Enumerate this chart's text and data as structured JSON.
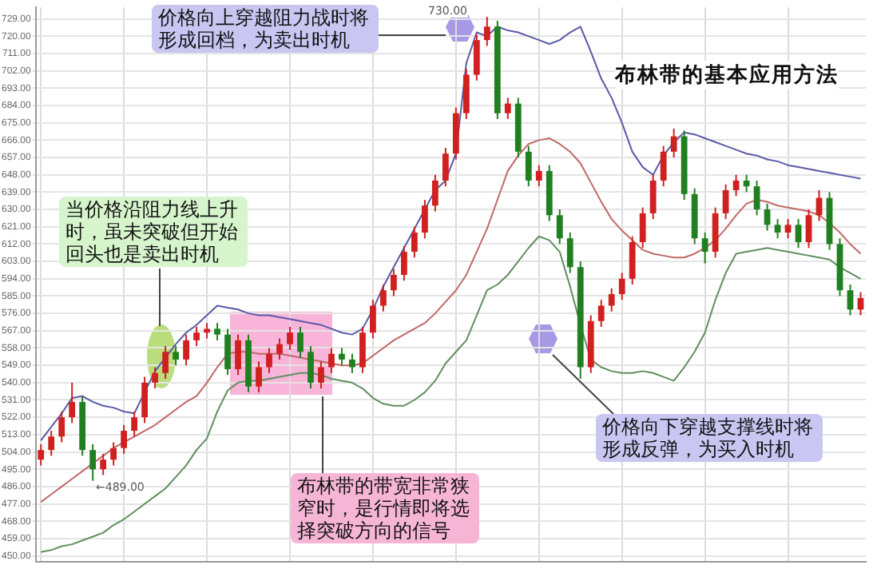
{
  "chart_data": {
    "type": "candlestick",
    "title": "布林带的基本应用方法",
    "categories": [
      null,
      null,
      null,
      null,
      null,
      null,
      null,
      null,
      null,
      null,
      null,
      null,
      null,
      null,
      null,
      null,
      null,
      null,
      null,
      null,
      null,
      null,
      null,
      null,
      null,
      null,
      null,
      null,
      null,
      null,
      null,
      null,
      null,
      null,
      null,
      null,
      null,
      null,
      null,
      null,
      null,
      null,
      null,
      null,
      null,
      null,
      null,
      null,
      null,
      null,
      null,
      null,
      null,
      null,
      null,
      null,
      null,
      null,
      null,
      null,
      null,
      null,
      null,
      null,
      null,
      null,
      null,
      null,
      null,
      null,
      null,
      null,
      null,
      null,
      null,
      null,
      null,
      null,
      null,
      null
    ],
    "ohlc": [
      [
        500,
        508,
        497,
        505
      ],
      [
        505,
        515,
        502,
        512
      ],
      [
        512,
        525,
        509,
        522
      ],
      [
        522,
        540,
        519,
        530
      ],
      [
        530,
        533,
        502,
        505
      ],
      [
        505,
        508,
        489,
        495
      ],
      [
        495,
        503,
        492,
        500
      ],
      [
        500,
        509,
        497,
        506
      ],
      [
        506,
        518,
        503,
        515
      ],
      [
        515,
        525,
        512,
        522
      ],
      [
        522,
        543,
        519,
        540
      ],
      [
        540,
        548,
        537,
        545
      ],
      [
        545,
        559,
        542,
        556
      ],
      [
        556,
        559,
        549,
        552
      ],
      [
        552,
        565,
        549,
        562
      ],
      [
        562,
        569,
        559,
        566
      ],
      [
        566,
        571,
        563,
        568
      ],
      [
        568,
        571,
        562,
        565
      ],
      [
        565,
        568,
        544,
        547
      ],
      [
        547,
        565,
        544,
        562
      ],
      [
        562,
        565,
        535,
        538
      ],
      [
        538,
        551,
        535,
        548
      ],
      [
        548,
        558,
        545,
        555
      ],
      [
        555,
        563,
        552,
        560
      ],
      [
        560,
        569,
        557,
        566
      ],
      [
        566,
        569,
        553,
        556
      ],
      [
        556,
        559,
        537,
        540
      ],
      [
        540,
        551,
        537,
        548
      ],
      [
        548,
        558,
        545,
        555
      ],
      [
        555,
        558,
        549,
        552
      ],
      [
        552,
        555,
        545,
        548
      ],
      [
        548,
        569,
        545,
        566
      ],
      [
        566,
        583,
        563,
        580
      ],
      [
        580,
        591,
        577,
        588
      ],
      [
        588,
        599,
        585,
        596
      ],
      [
        596,
        611,
        593,
        608
      ],
      [
        608,
        621,
        605,
        618
      ],
      [
        618,
        635,
        615,
        632
      ],
      [
        632,
        648,
        629,
        645
      ],
      [
        645,
        662,
        642,
        659
      ],
      [
        659,
        683,
        656,
        680
      ],
      [
        680,
        703,
        677,
        700
      ],
      [
        700,
        721,
        697,
        718
      ],
      [
        718,
        730,
        715,
        725
      ],
      [
        725,
        728,
        677,
        680
      ],
      [
        680,
        688,
        677,
        685
      ],
      [
        685,
        688,
        657,
        660
      ],
      [
        660,
        663,
        642,
        645
      ],
      [
        645,
        653,
        642,
        650
      ],
      [
        650,
        653,
        624,
        627
      ],
      [
        627,
        630,
        612,
        615
      ],
      [
        615,
        618,
        597,
        600
      ],
      [
        600,
        603,
        542,
        548
      ],
      [
        548,
        575,
        545,
        572
      ],
      [
        572,
        583,
        569,
        580
      ],
      [
        580,
        589,
        577,
        586
      ],
      [
        586,
        597,
        583,
        594
      ],
      [
        594,
        616,
        591,
        613
      ],
      [
        613,
        631,
        610,
        628
      ],
      [
        628,
        648,
        625,
        645
      ],
      [
        645,
        663,
        642,
        660
      ],
      [
        660,
        672,
        657,
        668
      ],
      [
        668,
        671,
        635,
        638
      ],
      [
        638,
        641,
        612,
        615
      ],
      [
        615,
        618,
        602,
        608
      ],
      [
        608,
        631,
        605,
        628
      ],
      [
        628,
        643,
        625,
        640
      ],
      [
        640,
        648,
        637,
        645
      ],
      [
        645,
        648,
        639,
        642
      ],
      [
        642,
        645,
        627,
        630
      ],
      [
        630,
        633,
        619,
        622
      ],
      [
        622,
        625,
        615,
        618
      ],
      [
        618,
        625,
        615,
        622
      ],
      [
        622,
        625,
        610,
        613
      ],
      [
        613,
        630,
        610,
        627
      ],
      [
        627,
        640,
        624,
        636
      ],
      [
        636,
        639,
        609,
        612
      ],
      [
        612,
        615,
        585,
        588
      ],
      [
        588,
        591,
        575,
        578
      ],
      [
        578,
        587,
        575,
        584
      ]
    ],
    "colors": [
      "#d02020",
      "#d02020",
      "#d02020",
      "#d02020",
      "#208020",
      "#208020",
      "#d02020",
      "#d02020",
      "#d02020",
      "#d02020",
      "#d02020",
      "#d02020",
      "#d02020",
      "#208020",
      "#d02020",
      "#d02020",
      "#d02020",
      "#208020",
      "#208020",
      "#d02020",
      "#208020",
      "#d02020",
      "#d02020",
      "#d02020",
      "#d02020",
      "#208020",
      "#208020",
      "#d02020",
      "#d02020",
      "#208020",
      "#208020",
      "#d02020",
      "#d02020",
      "#d02020",
      "#d02020",
      "#d02020",
      "#d02020",
      "#d02020",
      "#d02020",
      "#d02020",
      "#d02020",
      "#d02020",
      "#d02020",
      "#d02020",
      "#208020",
      "#d02020",
      "#208020",
      "#208020",
      "#d02020",
      "#208020",
      "#208020",
      "#208020",
      "#208020",
      "#d02020",
      "#d02020",
      "#d02020",
      "#d02020",
      "#d02020",
      "#d02020",
      "#d02020",
      "#d02020",
      "#d02020",
      "#208020",
      "#208020",
      "#208020",
      "#d02020",
      "#d02020",
      "#d02020",
      "#208020",
      "#208020",
      "#208020",
      "#208020",
      "#d02020",
      "#208020",
      "#d02020",
      "#d02020",
      "#208020",
      "#208020",
      "#208020",
      "#d02020"
    ],
    "series": [
      {
        "type": "line",
        "color": "#5a5aa8",
        "values": [
          510,
          517,
          524,
          532,
          533,
          530,
          528,
          527,
          525,
          524,
          535,
          546,
          553,
          560,
          566,
          570,
          575,
          580,
          579,
          578,
          576,
          575,
          575,
          574,
          573,
          572,
          571,
          570,
          568,
          566,
          565,
          568,
          578,
          590,
          600,
          610,
          620,
          630,
          640,
          645,
          659,
          706,
          722,
          720,
          725,
          723,
          722,
          720,
          718,
          716,
          718,
          722,
          725,
          712,
          698,
          688,
          675,
          660,
          652,
          648,
          658,
          665,
          670,
          669,
          667,
          665,
          663,
          661,
          659,
          658,
          656,
          655,
          653,
          652,
          651,
          650,
          649,
          648,
          647,
          646
        ]
      },
      {
        "type": "line",
        "color": "#c06868",
        "values": [
          478,
          482,
          486,
          490,
          494,
          498,
          502,
          506,
          509,
          512,
          515,
          518,
          522,
          526,
          530,
          533,
          540,
          548,
          555,
          556,
          556,
          555,
          555,
          555,
          554,
          553,
          552,
          551,
          550,
          549,
          549,
          550,
          554,
          558,
          562,
          565,
          568,
          571,
          576,
          582,
          588,
          596,
          608,
          620,
          635,
          650,
          658,
          664,
          666,
          667,
          664,
          660,
          654,
          644,
          634,
          625,
          619,
          614,
          609,
          607,
          606,
          605,
          605,
          607,
          610,
          614,
          620,
          627,
          633,
          635,
          634,
          632,
          631,
          630,
          629,
          627,
          623,
          618,
          612,
          607
        ]
      },
      {
        "type": "line",
        "color": "#5f8f5f",
        "values": [
          452,
          453,
          455,
          456,
          458,
          460,
          462,
          466,
          469,
          473,
          477,
          481,
          485,
          491,
          497,
          505,
          511,
          525,
          536,
          540,
          541,
          541,
          542,
          543,
          544,
          545,
          545,
          544,
          542,
          541,
          540,
          537,
          532,
          529,
          528,
          528,
          531,
          535,
          541,
          550,
          556,
          562,
          575,
          588,
          591,
          596,
          603,
          610,
          616,
          614,
          608,
          590,
          570,
          552,
          548,
          546,
          545,
          545,
          546,
          545,
          543,
          541,
          548,
          556,
          566,
          583,
          597,
          607,
          608,
          609,
          610,
          609,
          608,
          607,
          606,
          605,
          604,
          600,
          597,
          594
        ]
      }
    ],
    "ylim": [
      447,
      735
    ],
    "yticks": [
      {
        "value": 450,
        "label": "450.00"
      },
      {
        "value": 459,
        "label": "459.00"
      },
      {
        "value": 468,
        "label": "468.00"
      },
      {
        "value": 477,
        "label": "477.00"
      },
      {
        "value": 486,
        "label": "486.00"
      },
      {
        "value": 495,
        "label": "495.00"
      },
      {
        "value": 504,
        "label": "504.00"
      },
      {
        "value": 513,
        "label": "513.00"
      },
      {
        "value": 522,
        "label": "522.00"
      },
      {
        "value": 531,
        "label": "531.00"
      },
      {
        "value": 540,
        "label": "540.00"
      },
      {
        "value": 549,
        "label": "549.00"
      },
      {
        "value": 558,
        "label": "558.00"
      },
      {
        "value": 567,
        "label": "567.00"
      },
      {
        "value": 576,
        "label": "576.00"
      },
      {
        "value": 585,
        "label": "585.00"
      },
      {
        "value": 594,
        "label": "594.00"
      },
      {
        "value": 603,
        "label": "603.00"
      },
      {
        "value": 612,
        "label": "612.00"
      },
      {
        "value": 621,
        "label": "621.00"
      },
      {
        "value": 630,
        "label": "630.00"
      },
      {
        "value": 639,
        "label": "639.00"
      },
      {
        "value": 648,
        "label": "648.00"
      },
      {
        "value": 657,
        "label": "657.00"
      },
      {
        "value": 666,
        "label": "666.00"
      },
      {
        "value": 675,
        "label": "675.00"
      },
      {
        "value": 684,
        "label": "684.00"
      },
      {
        "value": 693,
        "label": "693.00"
      },
      {
        "value": 702,
        "label": "702.00"
      },
      {
        "value": 711,
        "label": "711.00"
      },
      {
        "value": 720,
        "label": "720.00"
      },
      {
        "value": 729,
        "label": "729.00"
      }
    ],
    "grid": true,
    "tick_labels": "y",
    "legend": false,
    "annotations": [
      "价格向上穿越阻力战时将形成回档，为卖出时机",
      "当价格沿阻力线上升时，虽未突破但开始回头也是卖出时机",
      "布林带的带宽非常狭窄时，是行情即将选择突破方向的信号",
      "价格向下穿越支撑线时将形成反弹，为买入时机",
      "730.00",
      "←489.00"
    ]
  }
}
